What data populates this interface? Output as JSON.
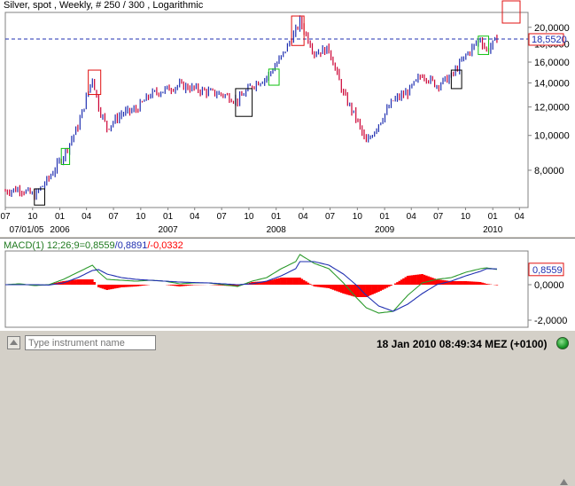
{
  "header": {
    "title": "Silver, spot , Weekly, # 250 / 300 , Logarithmic"
  },
  "chart_data": [
    {
      "type": "candlestick",
      "title": "Silver, spot , Weekly, # 250 / 300 , Logarithmic",
      "y_scale": "log",
      "ylim": [
        6.3,
        22
      ],
      "y_ticks": [
        "20,0000",
        "18,0000",
        "16,0000",
        "14,0000",
        "12,0000",
        "10,0000",
        "8,0000"
      ],
      "y_tick_values": [
        20,
        18,
        16,
        14,
        12,
        10,
        8
      ],
      "x_ticks": [
        "07",
        "10",
        "01",
        "04",
        "07",
        "10",
        "01",
        "04",
        "07",
        "10",
        "01",
        "04",
        "07",
        "10",
        "01",
        "04",
        "07",
        "10",
        "01",
        "04"
      ],
      "x_year_labels": [
        "07/01/05",
        "2006",
        "2007",
        "2008",
        "2009",
        "2010"
      ],
      "current_value_label": "18,5520",
      "current_value": 18.552,
      "x_start": "2005-07-01",
      "x_end": "2010-04-30",
      "series_x": [
        "2005-07-01",
        "2005-08-19",
        "2005-10-07",
        "2005-11-25",
        "2006-01-13",
        "2006-03-03",
        "2006-04-21",
        "2006-05-12",
        "2006-06-09",
        "2006-07-28",
        "2006-09-15",
        "2006-11-03",
        "2006-12-22",
        "2007-02-09",
        "2007-03-30",
        "2007-05-18",
        "2007-07-06",
        "2007-08-24",
        "2007-10-12",
        "2007-11-30",
        "2008-01-18",
        "2008-03-07",
        "2008-03-21",
        "2008-05-09",
        "2008-06-27",
        "2008-08-15",
        "2008-09-26",
        "2008-10-31",
        "2008-12-12",
        "2009-01-30",
        "2009-03-20",
        "2009-05-08",
        "2009-06-26",
        "2009-08-14",
        "2009-10-02",
        "2009-11-20",
        "2009-12-11",
        "2010-01-15"
      ],
      "series_y": [
        7.0,
        7.1,
        6.8,
        7.6,
        8.8,
        10.6,
        14.5,
        12.0,
        10.5,
        11.5,
        11.8,
        13.0,
        13.4,
        13.8,
        13.5,
        13.2,
        13.0,
        12.5,
        13.8,
        14.5,
        16.5,
        19.5,
        20.8,
        17.0,
        17.4,
        13.0,
        11.2,
        9.5,
        10.8,
        12.5,
        13.2,
        14.8,
        13.8,
        14.6,
        16.7,
        18.6,
        17.2,
        18.55
      ],
      "boxes": [
        {
          "color": "red",
          "from": "2006-04-07",
          "to": "2006-05-19",
          "low": 13.0,
          "high": 15.2
        },
        {
          "color": "red",
          "from": "2008-02-22",
          "to": "2008-04-04",
          "low": 17.8,
          "high": 21.5
        },
        {
          "color": "green",
          "from": "2006-01-06",
          "to": "2006-02-03",
          "low": 8.3,
          "high": 9.2
        },
        {
          "color": "green",
          "from": "2007-12-07",
          "to": "2008-01-11",
          "low": 13.8,
          "high": 15.3
        },
        {
          "color": "green",
          "from": "2009-11-13",
          "to": "2009-12-18",
          "low": 16.8,
          "high": 18.9
        },
        {
          "color": "black",
          "from": "2005-10-07",
          "to": "2005-11-11",
          "low": 6.4,
          "high": 7.1
        },
        {
          "color": "black",
          "from": "2007-08-17",
          "to": "2007-10-12",
          "low": 11.3,
          "high": 13.5
        },
        {
          "color": "black",
          "from": "2009-08-14",
          "to": "2009-09-18",
          "low": 13.5,
          "high": 15.2
        }
      ],
      "reference_line": 18.552
    },
    {
      "type": "macd",
      "label": "MACD(1) 12;26;9=0,8559/0,8891/-0,0332",
      "label_parts": [
        "MACD(1) 12;26;9=0,8559",
        "/0,8891",
        "/-0,0332"
      ],
      "ylim": [
        -2.4,
        1.9
      ],
      "y_ticks": [
        "0,0000",
        "-2,0000"
      ],
      "y_tick_values": [
        0,
        -2
      ],
      "current_value_label": "0,8559",
      "macd_values": [
        0.0,
        0.05,
        -0.05,
        0.0,
        0.3,
        0.7,
        1.1,
        0.7,
        0.3,
        0.25,
        0.2,
        0.25,
        0.2,
        0.05,
        0.1,
        0.1,
        0.0,
        -0.1,
        0.2,
        0.4,
        0.9,
        1.3,
        1.7,
        1.2,
        0.9,
        0.1,
        -0.7,
        -1.3,
        -1.6,
        -1.5,
        -0.6,
        0.1,
        0.3,
        0.4,
        0.7,
        0.9,
        0.95,
        0.86
      ],
      "signal_values": [
        0.0,
        0.0,
        0.0,
        -0.02,
        0.1,
        0.4,
        0.8,
        0.85,
        0.6,
        0.4,
        0.3,
        0.25,
        0.2,
        0.15,
        0.12,
        0.1,
        0.05,
        0.0,
        0.05,
        0.2,
        0.5,
        0.9,
        1.3,
        1.3,
        1.1,
        0.6,
        0.0,
        -0.6,
        -1.2,
        -1.5,
        -1.1,
        -0.5,
        0.0,
        0.2,
        0.5,
        0.75,
        0.9,
        0.89
      ]
    }
  ],
  "colors": {
    "macd_line": "#2c9a2c",
    "signal_line": "#1f2fb0",
    "histogram": "#ff0000",
    "up_candle": "#1f2fb0",
    "down_candle": "#cc0033",
    "reference": "#1f2fb0"
  },
  "footer": {
    "search_placeholder": "Type instrument name",
    "datetime": "18 Jan 2010 08:49:34  MEZ (+0100)"
  }
}
